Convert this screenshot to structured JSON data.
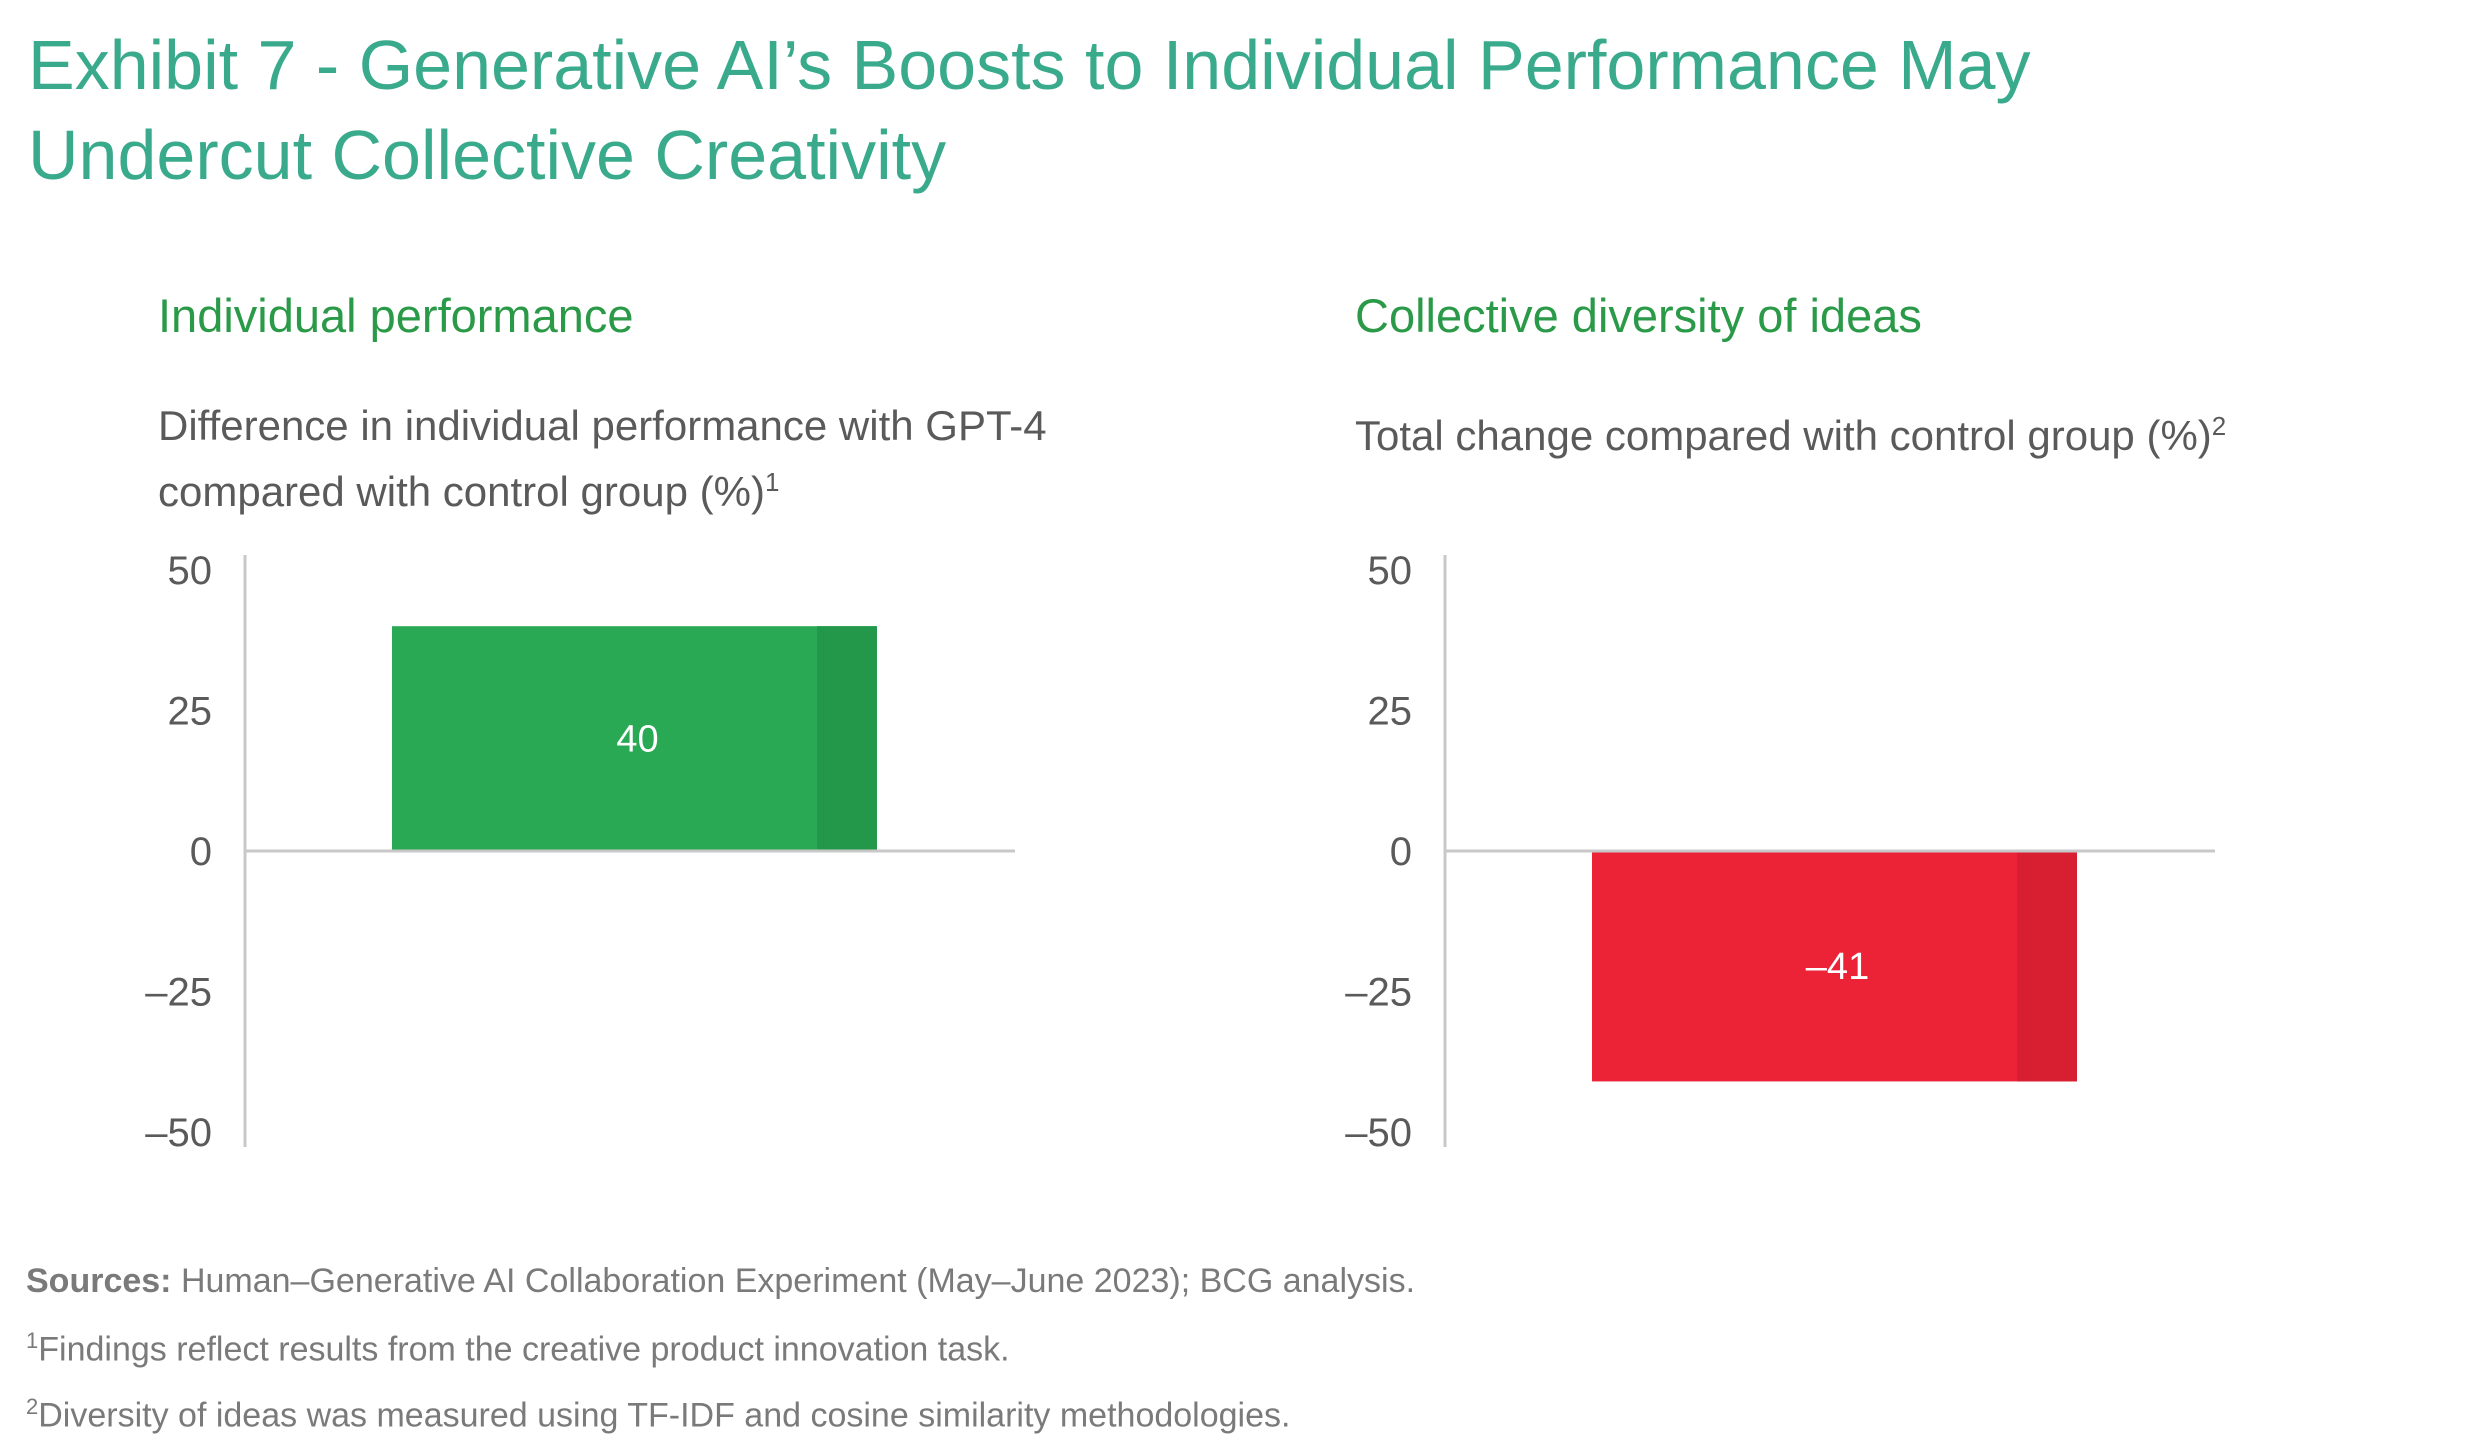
{
  "title": "Exhibit 7 - Generative AI’s Boosts to Individual Performance May Undercut Collective Creativity",
  "chart_data": [
    {
      "type": "bar",
      "title": "Individual performance",
      "subtitle": "Difference in individual performance with GPT-4 compared with control group (%)",
      "subtitle_note": "1",
      "categories": [
        ""
      ],
      "values": [
        40
      ],
      "value_labels": [
        "40"
      ],
      "ylim": [
        -50,
        50
      ],
      "yticks": [
        50,
        25,
        0,
        -25,
        -50
      ],
      "ytick_labels": [
        "50",
        "25",
        "0",
        "–25",
        "–50"
      ],
      "bar_color": "#2aa955",
      "bar_shade_color": "#23974a",
      "xlabel": "",
      "ylabel": ""
    },
    {
      "type": "bar",
      "title": "Collective diversity of ideas",
      "subtitle": "Total change compared with control group (%)",
      "subtitle_note": "2",
      "categories": [
        ""
      ],
      "values": [
        -41
      ],
      "value_labels": [
        "–41"
      ],
      "ylim": [
        -50,
        50
      ],
      "yticks": [
        50,
        25,
        0,
        -25,
        -50
      ],
      "ytick_labels": [
        "50",
        "25",
        "0",
        "–25",
        "–50"
      ],
      "bar_color": "#ec2337",
      "bar_shade_color": "#d81e31",
      "xlabel": "",
      "ylabel": ""
    }
  ],
  "footer": {
    "sources_label": "Sources:",
    "sources_text": "Human–Generative AI Collaboration Experiment (May–June 2023); BCG analysis.",
    "note1_mark": "1",
    "note1_text": "Findings reflect results from the creative product innovation task.",
    "note2_mark": "2",
    "note2_text": "Diversity of ideas was measured using TF-IDF and cosine similarity methodologies."
  },
  "colors": {
    "title": "#3aaa8c",
    "panel_title": "#2a9a48",
    "axis": "#c8c8c8",
    "text": "#5a5a5a"
  }
}
